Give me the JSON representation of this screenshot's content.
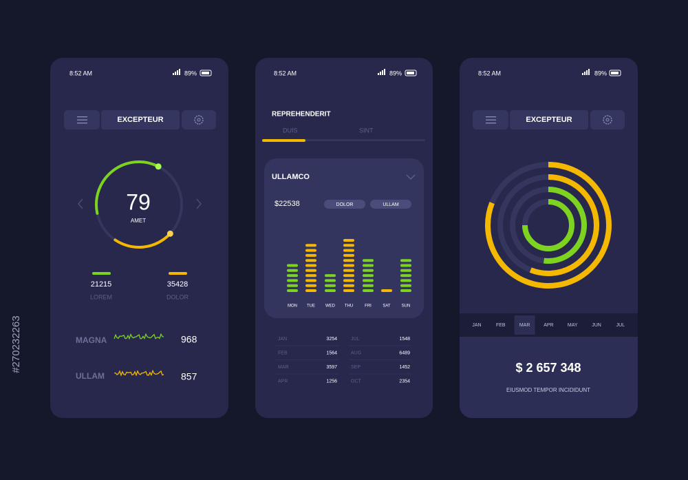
{
  "watermark_id": "#270232263",
  "screens": [
    {
      "status": {
        "time": "8:52 AM",
        "battery": "89%"
      },
      "header": {
        "title": "EXCEPTEUR"
      },
      "gauge": {
        "value": 79,
        "label": "AMET"
      },
      "stats": [
        {
          "value": 21215,
          "label": "LOREM",
          "color": "#7ed321"
        },
        {
          "value": 35428,
          "label": "DOLOR",
          "color": "#f5b800"
        }
      ],
      "rows": [
        {
          "label": "MAGNA",
          "value": 968,
          "color": "#7ed321"
        },
        {
          "label": "ULLAM",
          "value": 857,
          "color": "#f5b800"
        }
      ]
    },
    {
      "status": {
        "time": "8:52 AM",
        "battery": "89%"
      },
      "title": "REPREHENDERIT",
      "tabs": [
        "DUIS",
        "SINT"
      ],
      "card": {
        "title": "ULLAMCO",
        "amount": "$22538",
        "pills": [
          "DOLOR",
          "ULLAM"
        ],
        "bars": {
          "days": [
            "MON",
            "TUE",
            "WED",
            "THU",
            "FRI",
            "SAT",
            "SUN"
          ],
          "segments": [
            6,
            10,
            4,
            11,
            7,
            1,
            7
          ],
          "colors": [
            "#7ed321",
            "#f5b800",
            "#7ed321",
            "#f5b800",
            "#7ed321",
            "#f5b800",
            "#7ed321"
          ]
        }
      },
      "table": [
        [
          "JAN",
          3254,
          "JUL",
          1548
        ],
        [
          "FEB",
          1564,
          "AUG",
          6489
        ],
        [
          "MAR",
          3597,
          "SEP",
          1452
        ],
        [
          "APR",
          1256,
          "OCT",
          2354
        ]
      ]
    },
    {
      "status": {
        "time": "8:52 AM",
        "battery": "89%"
      },
      "header": {
        "title": "EXCEPTEUR"
      },
      "rings": [
        {
          "value": 81,
          "color": "#f5b800"
        },
        {
          "value": 56,
          "color": "#f5b800"
        },
        {
          "value": 52,
          "color": "#7ed321"
        },
        {
          "value": 75,
          "color": "#7ed321"
        }
      ],
      "months": [
        "JAN",
        "FEB",
        "MAR",
        "APR",
        "MAY",
        "JUN",
        "JUL"
      ],
      "selected_month": 2,
      "total": "$ 2 657 348",
      "caption": "EIUSMOD TEMPOR INCIDIDUNT"
    }
  ]
}
